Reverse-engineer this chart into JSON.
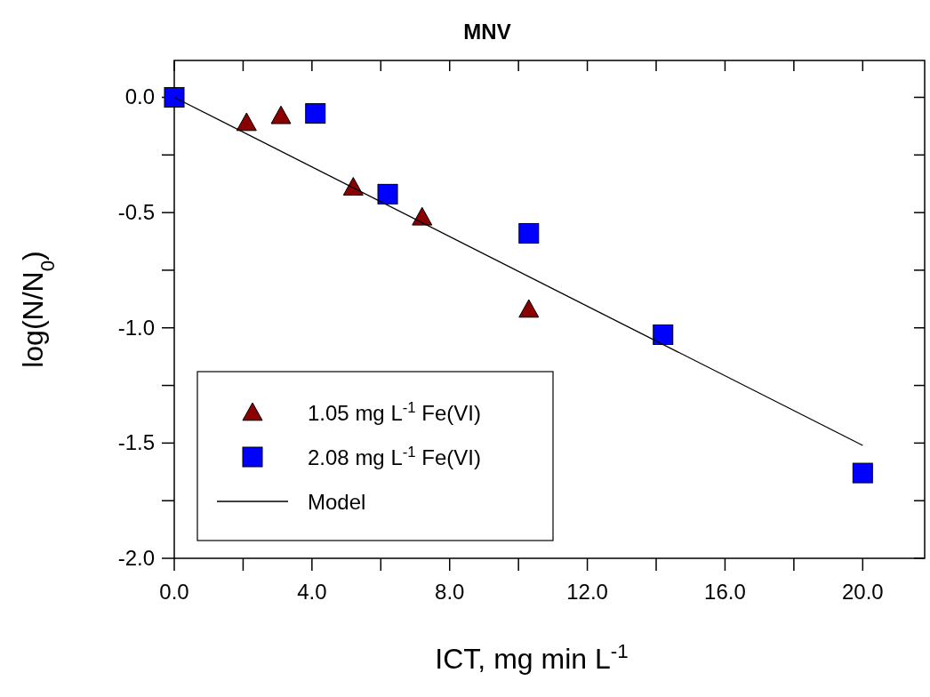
{
  "chart_data": {
    "type": "scatter",
    "title": "MNV",
    "xlabel": "ICT, mg min L$^{-1}$",
    "ylabel": "log(N/N$_{0}$)",
    "xlim": [
      0,
      21.8
    ],
    "xticks": [
      {
        "value": 0,
        "label": "0.0"
      },
      {
        "value": 2,
        "label": null
      },
      {
        "value": 4,
        "label": "4.0"
      },
      {
        "value": 6,
        "label": null
      },
      {
        "value": 8,
        "label": "8.0"
      },
      {
        "value": 10,
        "label": null
      },
      {
        "value": 12,
        "label": "12.0"
      },
      {
        "value": 14,
        "label": null
      },
      {
        "value": 16,
        "label": "16.0"
      },
      {
        "value": 18,
        "label": null
      },
      {
        "value": 20,
        "label": "20.0"
      }
    ],
    "ylim": [
      -2.0,
      0.16
    ],
    "yticks": [
      {
        "value": -2,
        "label": "-2.0"
      },
      {
        "value": -1.75,
        "label": null
      },
      {
        "value": -1.5,
        "label": "-1.5"
      },
      {
        "value": -1.25,
        "label": null
      },
      {
        "value": -1,
        "label": "-1.0"
      },
      {
        "value": -0.75,
        "label": null
      },
      {
        "value": -0.5,
        "label": "-0.5"
      },
      {
        "value": -0.25,
        "label": null
      },
      {
        "value": 0,
        "label": "0.0"
      }
    ],
    "grid": false,
    "legend": "bottom left",
    "series": [
      {
        "name": "1.05 mg L$^{-1}$ Fe(VI)",
        "marker": "triangle",
        "color": "#8b0000",
        "x": [
          2.1,
          3.1,
          5.2,
          7.2,
          10.3
        ],
        "values": [
          -0.11,
          -0.08,
          -0.39,
          -0.52,
          -0.92
        ]
      },
      {
        "name": "2.08 mg L$^{-1}$ Fe(VI)",
        "marker": "square",
        "color": "#0000ff",
        "x": [
          0,
          4.1,
          6.2,
          10.3,
          14.2,
          20
        ],
        "values": [
          0,
          -0.07,
          -0.42,
          -0.59,
          -1.03,
          -1.63
        ]
      },
      {
        "name": "Model",
        "type": "line",
        "marker": "none",
        "line_style": "solid",
        "color": "#000000",
        "x": [
          0,
          20
        ],
        "values": [
          0,
          -1.51
        ]
      }
    ]
  }
}
